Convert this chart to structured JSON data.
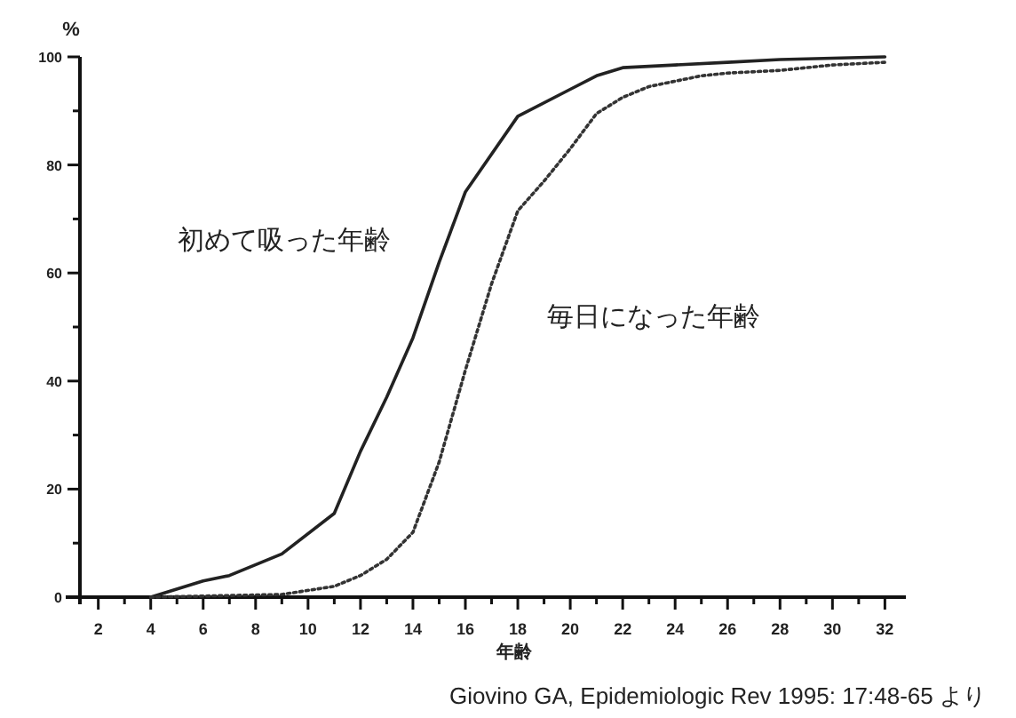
{
  "chart_data": {
    "type": "line",
    "xlabel": "年齢",
    "ylabel": "%",
    "xlim": [
      1.3,
      32.8
    ],
    "ylim": [
      0,
      100
    ],
    "xticks": [
      2,
      {
        "value": 3,
        "label": null
      },
      4,
      {
        "value": 5,
        "label": null
      },
      6,
      {
        "value": 7,
        "label": null
      },
      8,
      {
        "value": 9,
        "label": null
      },
      10,
      {
        "value": 11,
        "label": null
      },
      12,
      {
        "value": 13,
        "label": null
      },
      14,
      {
        "value": 15,
        "label": null
      },
      16,
      {
        "value": 17,
        "label": null
      },
      18,
      {
        "value": 19,
        "label": null
      },
      20,
      {
        "value": 21,
        "label": null
      },
      22,
      {
        "value": 23,
        "label": null
      },
      24,
      {
        "value": 25,
        "label": null
      },
      26,
      {
        "value": 27,
        "label": null
      },
      28,
      {
        "value": 29,
        "label": null
      },
      30,
      {
        "value": 31,
        "label": null
      },
      32
    ],
    "yticks": [
      0,
      {
        "value": 10,
        "label": null
      },
      20,
      {
        "value": 30,
        "label": null
      },
      40,
      {
        "value": 50,
        "label": null
      },
      60,
      {
        "value": 70,
        "label": null
      },
      80,
      {
        "value": 90,
        "label": null
      },
      100
    ],
    "grid": false,
    "series": [
      {
        "name": "初めて吸った年齢",
        "color": "#222222",
        "line_style": "solid",
        "x": [
          4,
          6,
          7,
          9,
          11,
          12,
          13,
          14,
          15,
          16,
          18,
          20,
          21,
          22,
          24,
          26,
          28,
          32
        ],
        "values": [
          0,
          3,
          4,
          8,
          15.5,
          27,
          37,
          48,
          62,
          75,
          89,
          94,
          96.5,
          98,
          98.5,
          99,
          99.5,
          100
        ]
      },
      {
        "name": "毎日になった年齢",
        "color": "#333333",
        "line_style": "dotted",
        "x": [
          4,
          9,
          11,
          12,
          13,
          14,
          15,
          16,
          17,
          18,
          19,
          20,
          21,
          22,
          23,
          24,
          25,
          26,
          28,
          30,
          32
        ],
        "values": [
          0,
          0.5,
          2,
          4,
          7,
          12,
          25,
          42,
          58,
          71.5,
          77,
          83,
          89.5,
          92.5,
          94.5,
          95.5,
          96.5,
          97,
          97.5,
          98.5,
          99
        ]
      }
    ],
    "annotations": [
      "Giovino GA, Epidemiologic Rev 1995: 17:48-65 より"
    ]
  }
}
